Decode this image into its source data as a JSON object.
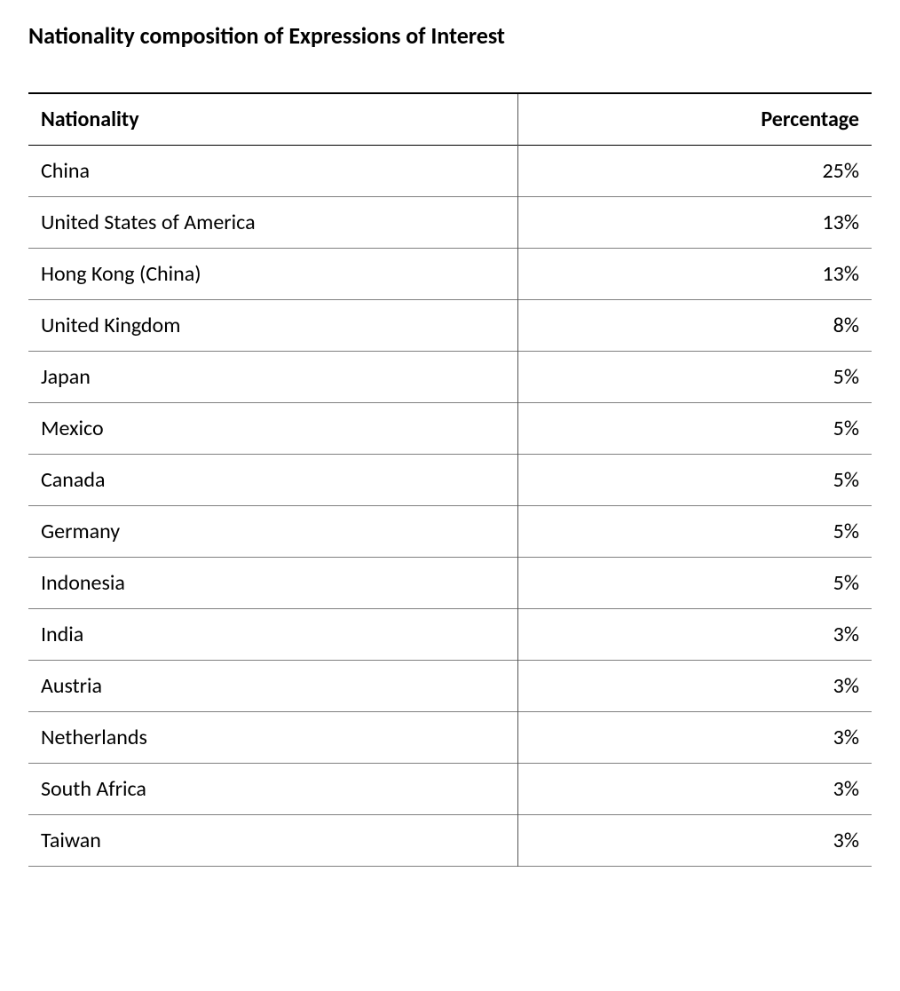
{
  "title": "Nationality composition of Expressions of Interest",
  "table": {
    "type": "table",
    "columns": [
      {
        "key": "nationality",
        "label": "Nationality",
        "align": "left"
      },
      {
        "key": "percentage",
        "label": "Percentage",
        "align": "right"
      }
    ],
    "rows": [
      {
        "nationality": "China",
        "percentage": "25%"
      },
      {
        "nationality": "United States of America",
        "percentage": "13%"
      },
      {
        "nationality": "Hong Kong (China)",
        "percentage": "13%"
      },
      {
        "nationality": "United Kingdom",
        "percentage": "8%"
      },
      {
        "nationality": "Japan",
        "percentage": "5%"
      },
      {
        "nationality": "Mexico",
        "percentage": "5%"
      },
      {
        "nationality": "Canada",
        "percentage": "5%"
      },
      {
        "nationality": "Germany",
        "percentage": "5%"
      },
      {
        "nationality": "Indonesia",
        "percentage": "5%"
      },
      {
        "nationality": "India",
        "percentage": "3%"
      },
      {
        "nationality": "Austria",
        "percentage": "3%"
      },
      {
        "nationality": "Netherlands",
        "percentage": "3%"
      },
      {
        "nationality": "South Africa",
        "percentage": "3%"
      },
      {
        "nationality": "Taiwan",
        "percentage": "3%"
      }
    ],
    "style": {
      "title_fontsize": 26,
      "header_fontsize": 24,
      "cell_fontsize": 24,
      "text_color": "#000000",
      "background_color": "#ffffff",
      "top_border_color": "#000000",
      "header_border_color": "#000000",
      "row_border_color": "#808080",
      "vertical_divider_color": "#555555",
      "col_widths_pct": [
        58,
        42
      ]
    }
  }
}
